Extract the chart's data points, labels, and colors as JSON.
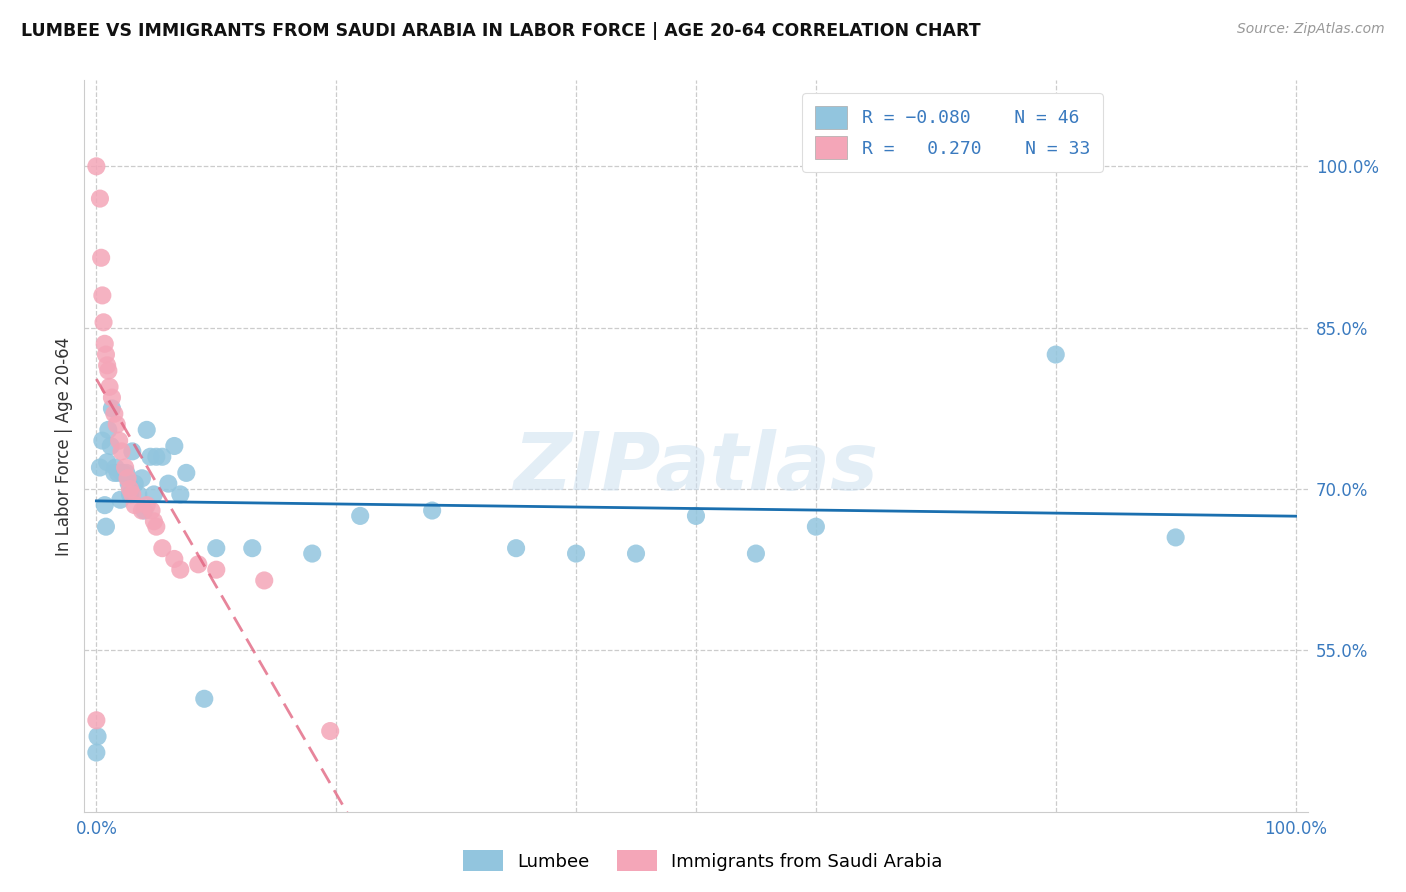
{
  "title": "LUMBEE VS IMMIGRANTS FROM SAUDI ARABIA IN LABOR FORCE | AGE 20-64 CORRELATION CHART",
  "source": "Source: ZipAtlas.com",
  "ylabel": "In Labor Force | Age 20-64",
  "color_lumbee": "#92c5de",
  "color_saudi": "#f4a6b8",
  "color_lumbee_line": "#1a6faf",
  "color_saudi_line": "#e05c7a",
  "background_color": "#ffffff",
  "watermark": "ZIPatlas",
  "lumbee_x": [
    0.0,
    0.001,
    0.003,
    0.005,
    0.007,
    0.008,
    0.009,
    0.01,
    0.012,
    0.013,
    0.015,
    0.016,
    0.018,
    0.02,
    0.022,
    0.025,
    0.027,
    0.028,
    0.03,
    0.032,
    0.035,
    0.038,
    0.04,
    0.042,
    0.045,
    0.048,
    0.05,
    0.055,
    0.06,
    0.065,
    0.07,
    0.075,
    0.09,
    0.1,
    0.13,
    0.18,
    0.22,
    0.28,
    0.35,
    0.4,
    0.45,
    0.5,
    0.55,
    0.6,
    0.8,
    0.9
  ],
  "lumbee_y": [
    0.455,
    0.47,
    0.72,
    0.745,
    0.685,
    0.665,
    0.725,
    0.755,
    0.74,
    0.775,
    0.715,
    0.72,
    0.715,
    0.69,
    0.715,
    0.715,
    0.705,
    0.695,
    0.735,
    0.705,
    0.695,
    0.71,
    0.68,
    0.755,
    0.73,
    0.695,
    0.73,
    0.73,
    0.705,
    0.74,
    0.695,
    0.715,
    0.505,
    0.645,
    0.645,
    0.64,
    0.675,
    0.68,
    0.645,
    0.64,
    0.64,
    0.675,
    0.64,
    0.665,
    0.825,
    0.655
  ],
  "saudi_x": [
    0.0,
    0.0,
    0.003,
    0.004,
    0.005,
    0.006,
    0.007,
    0.008,
    0.009,
    0.01,
    0.011,
    0.013,
    0.015,
    0.017,
    0.019,
    0.021,
    0.024,
    0.026,
    0.028,
    0.03,
    0.032,
    0.038,
    0.042,
    0.046,
    0.048,
    0.05,
    0.055,
    0.065,
    0.07,
    0.085,
    0.1,
    0.14,
    0.195
  ],
  "saudi_y": [
    0.485,
    1.0,
    0.97,
    0.915,
    0.88,
    0.855,
    0.835,
    0.825,
    0.815,
    0.81,
    0.795,
    0.785,
    0.77,
    0.76,
    0.745,
    0.735,
    0.72,
    0.71,
    0.7,
    0.695,
    0.685,
    0.68,
    0.685,
    0.68,
    0.67,
    0.665,
    0.645,
    0.635,
    0.625,
    0.63,
    0.625,
    0.615,
    0.475
  ],
  "xlim": [
    -0.01,
    1.01
  ],
  "ylim": [
    0.4,
    1.08
  ],
  "y_ticks": [
    0.55,
    0.7,
    0.85,
    1.0
  ],
  "y_tick_labels": [
    "55.0%",
    "70.0%",
    "85.0%",
    "100.0%"
  ],
  "x_ticks": [
    0.0,
    0.2,
    0.4,
    0.5,
    0.6,
    0.8,
    1.0
  ],
  "x_tick_labels": [
    "0.0%",
    "",
    "",
    "",
    "",
    "",
    "100.0%"
  ]
}
